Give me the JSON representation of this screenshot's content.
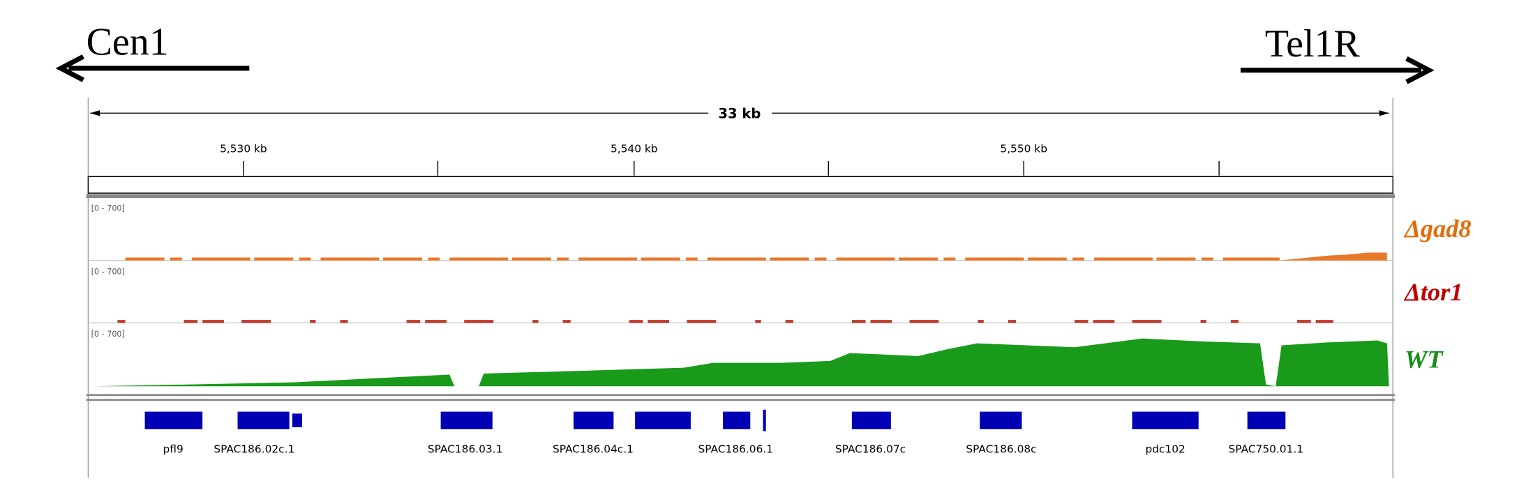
{
  "header": {
    "left_label": "Cen1",
    "right_label": "Tel1R"
  },
  "ruler": {
    "span": "33 kb",
    "ticks": [
      "5,530 kb",
      "5,540 kb",
      "5,550 kb"
    ]
  },
  "tracks": [
    {
      "range": "[0 - 700]",
      "name": "Δgad8"
    },
    {
      "range": "[0 - 700]",
      "name": "Δtor1"
    },
    {
      "range": "[0 - 700]",
      "name": "WT"
    }
  ],
  "genes": [
    "pfl9",
    "SPAC186.02c.1",
    "SPAC186.03.1",
    "SPAC186.04c.1",
    "SPAC186.06.1",
    "SPAC186.07c",
    "SPAC186.08c",
    "pdc102",
    "SPAC750.01.1"
  ]
}
